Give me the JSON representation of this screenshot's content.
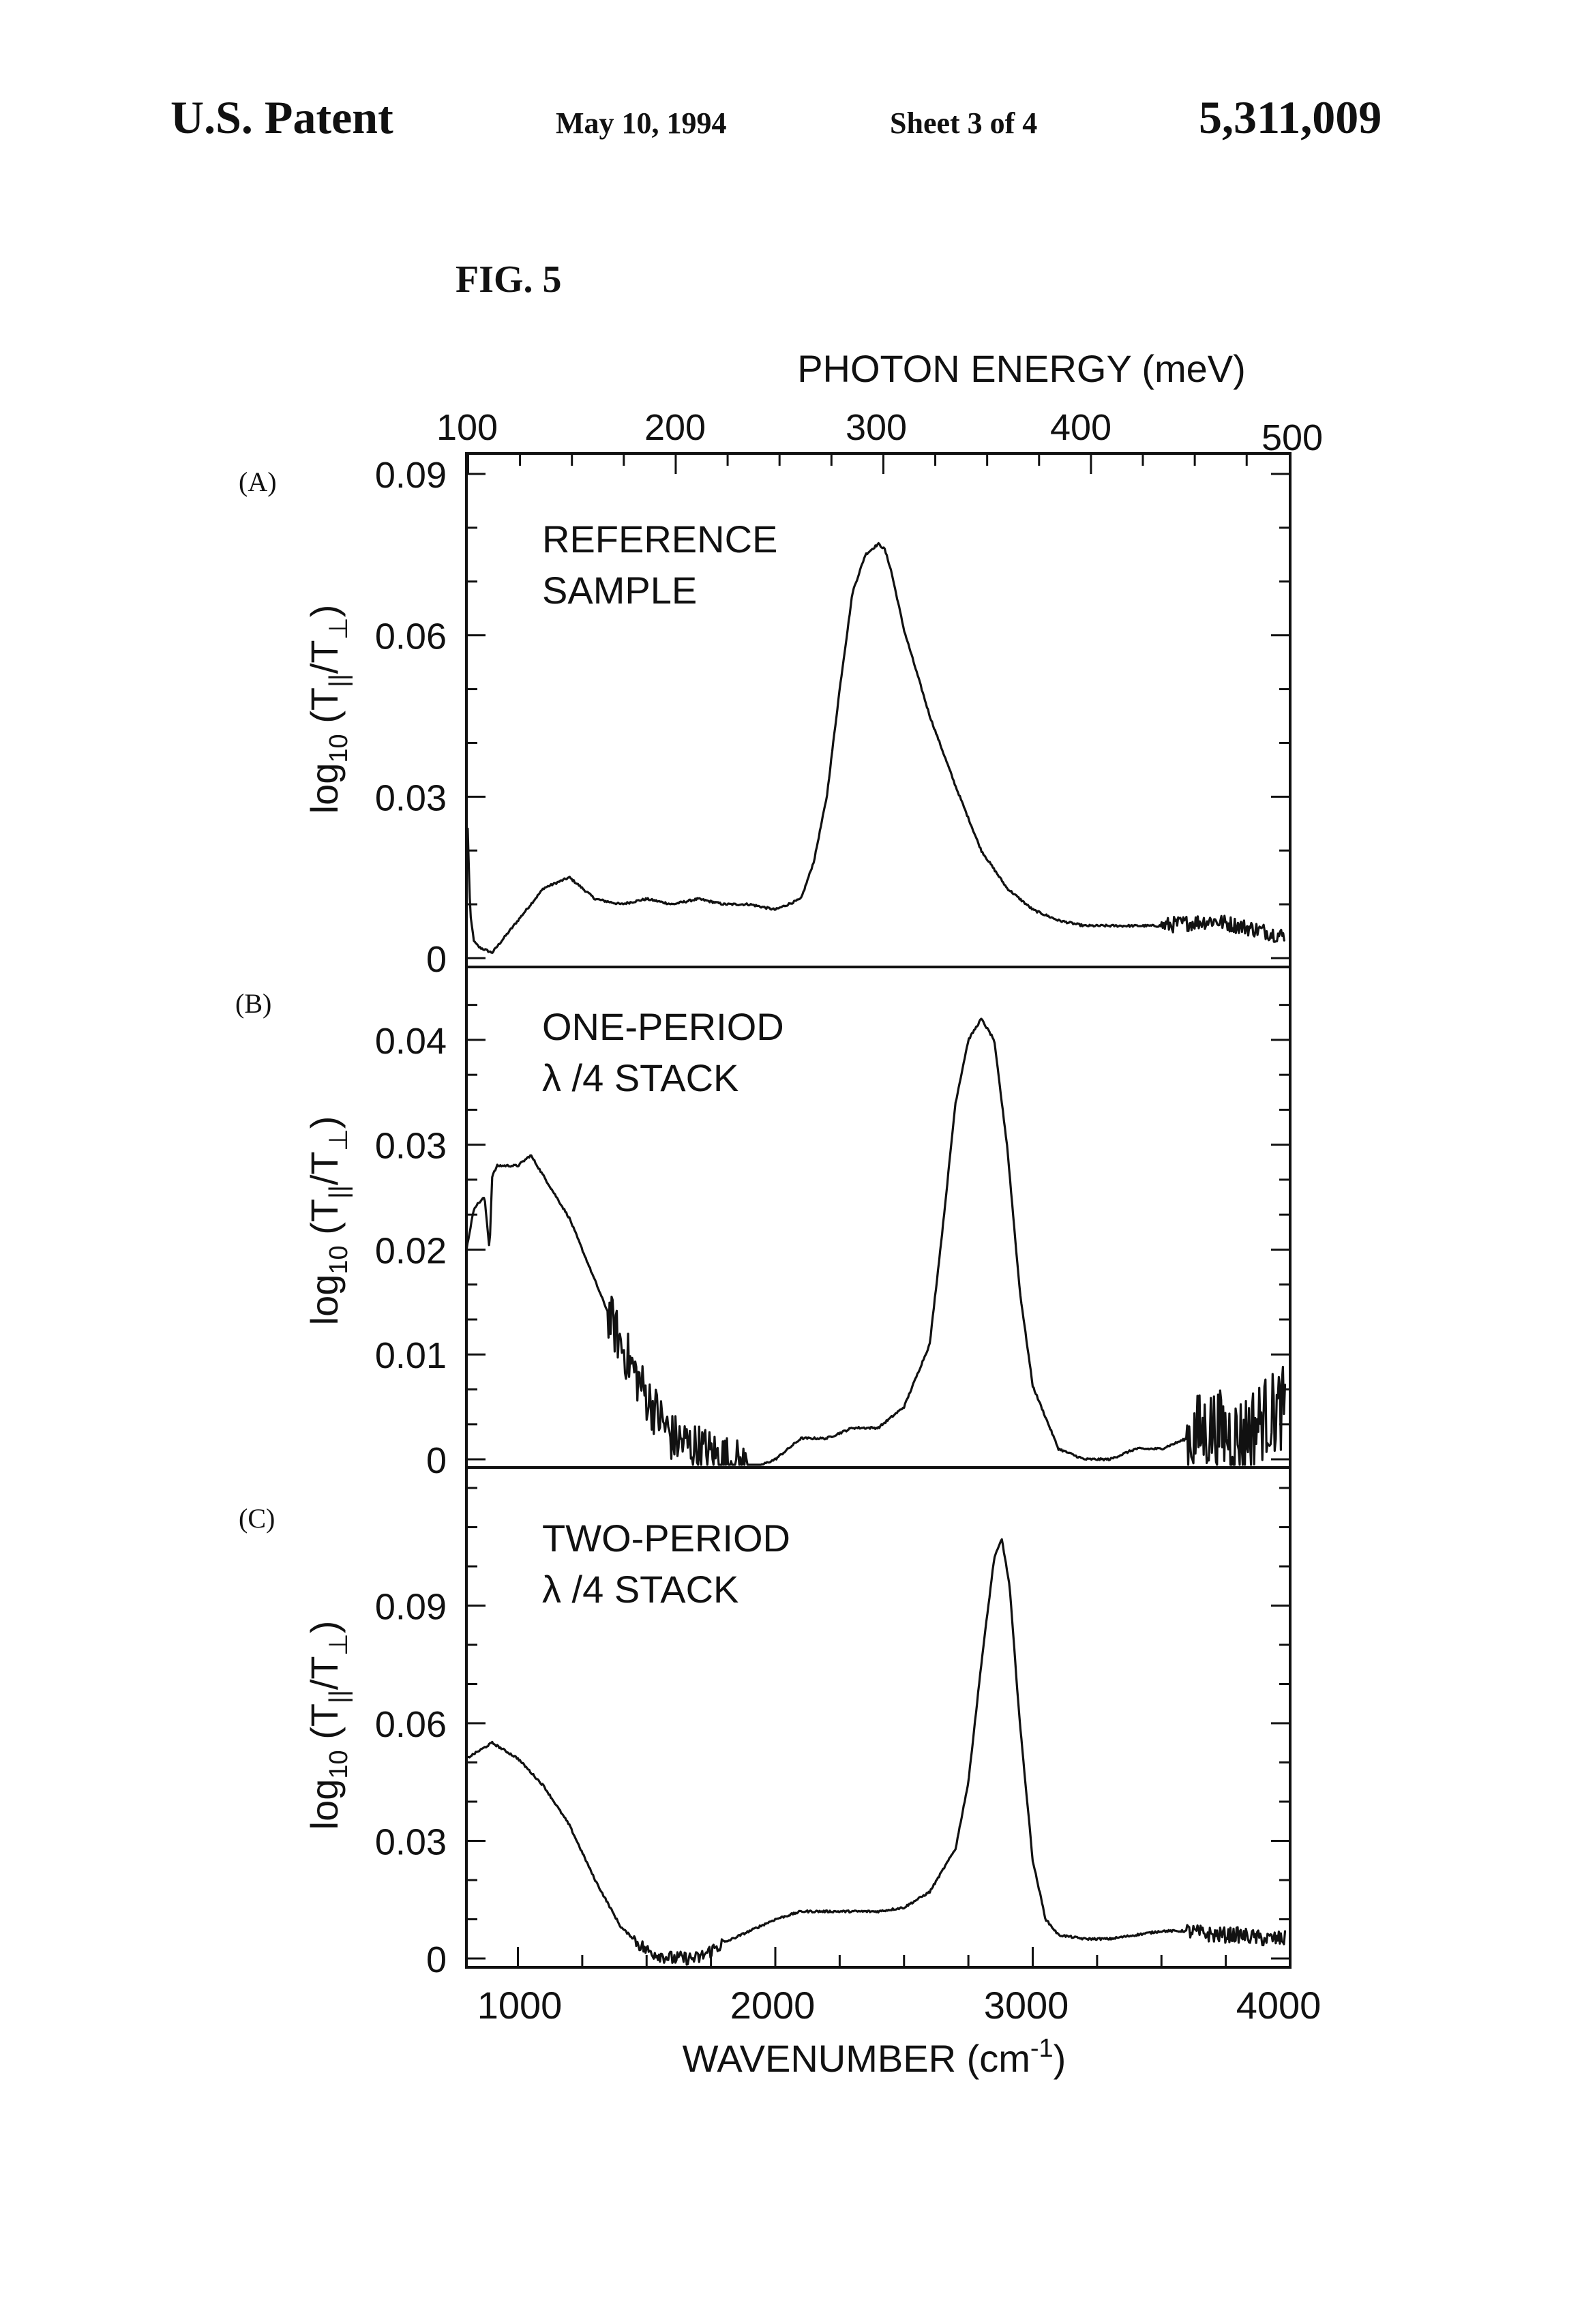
{
  "header": {
    "patent": "U.S. Patent",
    "date": "May 10, 1994",
    "sheet": "Sheet 3 of 4",
    "number": "5,311,009"
  },
  "figure": {
    "title": "FIG. 5",
    "top_axis_title": "PHOTON ENERGY (meV)",
    "top_axis_ticks": [
      "100",
      "200",
      "300",
      "400",
      "500"
    ],
    "bottom_axis_ticks": [
      "1000",
      "2000",
      "3000",
      "4000"
    ],
    "x_label": "WAVENUMBER (cm",
    "x_label_sup": "-1",
    "x_label_close": ")",
    "y_label": "log",
    "y_label_sub": "10",
    "y_label_rest": " (T",
    "y_label_sub2": "||",
    "y_label_mid": "/T",
    "y_label_sub3": "⊥",
    "y_label_close": ")"
  },
  "chart_data": [
    {
      "type": "line",
      "panel": "(A)",
      "annotation": [
        "REFERENCE",
        "SAMPLE"
      ],
      "xlabel": "WAVENUMBER (cm-1)",
      "ylabel": "log10 (T||/T⊥)",
      "xlim": [
        800,
        4000
      ],
      "ylim": [
        0,
        0.09
      ],
      "y_ticks": [
        "0",
        "0.03",
        "0.06",
        "0.09"
      ],
      "y_tick_values": [
        0,
        0.03,
        0.06,
        0.09
      ],
      "x": [
        805,
        815,
        830,
        850,
        900,
        1000,
        1100,
        1200,
        1300,
        1400,
        1500,
        1600,
        1700,
        1800,
        1900,
        2000,
        2100,
        2150,
        2200,
        2250,
        2300,
        2350,
        2400,
        2425,
        2450,
        2500,
        2600,
        2700,
        2800,
        2900,
        3000,
        3100,
        3200,
        3300,
        3500,
        3700,
        3800,
        3900,
        3980
      ],
      "y": [
        0.024,
        0.008,
        0.003,
        0.002,
        0.001,
        0.007,
        0.013,
        0.015,
        0.011,
        0.01,
        0.011,
        0.01,
        0.011,
        0.01,
        0.01,
        0.009,
        0.011,
        0.018,
        0.03,
        0.05,
        0.068,
        0.075,
        0.077,
        0.076,
        0.072,
        0.061,
        0.045,
        0.032,
        0.02,
        0.013,
        0.009,
        0.007,
        0.006,
        0.006,
        0.006,
        0.007,
        0.006,
        0.005,
        0.004
      ],
      "noise_after": 3500,
      "noise_amp": 0.0015
    },
    {
      "type": "line",
      "panel": "(B)",
      "annotation": [
        "ONE-PERIOD",
        "λ /4 STACK"
      ],
      "xlabel": "WAVENUMBER (cm-1)",
      "ylabel": "log10 (T||/T⊥)",
      "xlim": [
        800,
        4000
      ],
      "ylim": [
        0,
        0.045
      ],
      "y_ticks": [
        "0",
        "0.01",
        "0.02",
        "0.03",
        "0.04"
      ],
      "y_tick_values": [
        0,
        0.01,
        0.02,
        0.03,
        0.04
      ],
      "x": [
        800,
        830,
        870,
        890,
        900,
        920,
        1000,
        1050,
        1100,
        1200,
        1300,
        1400,
        1500,
        1600,
        1700,
        1800,
        1900,
        2000,
        2100,
        2200,
        2300,
        2400,
        2500,
        2600,
        2650,
        2700,
        2750,
        2800,
        2850,
        2900,
        2950,
        3000,
        3100,
        3200,
        3300,
        3400,
        3500,
        3600,
        3700,
        3800,
        3900,
        3980
      ],
      "y": [
        0.02,
        0.024,
        0.025,
        0.02,
        0.027,
        0.028,
        0.028,
        0.029,
        0.027,
        0.023,
        0.017,
        0.011,
        0.006,
        0.002,
        0.001,
        0.0,
        -0.001,
        0.0,
        0.002,
        0.002,
        0.003,
        0.003,
        0.005,
        0.011,
        0.022,
        0.034,
        0.04,
        0.042,
        0.04,
        0.03,
        0.016,
        0.007,
        0.001,
        0.0,
        0.0,
        0.001,
        0.001,
        0.002,
        0.003,
        0.002,
        0.004,
        0.005
      ],
      "noise_after": 3600,
      "noise_amp": 0.004,
      "noise_band": [
        1350,
        1900
      ],
      "noise_band_amp": 0.0025
    },
    {
      "type": "line",
      "panel": "(C)",
      "annotation": [
        "TWO-PERIOD",
        "λ /4 STACK"
      ],
      "xlabel": "WAVENUMBER (cm-1)",
      "ylabel": "log10 (T||/T⊥)",
      "xlim": [
        800,
        4000
      ],
      "ylim": [
        0,
        0.12
      ],
      "y_ticks": [
        "0",
        "0.03",
        "0.06",
        "0.09"
      ],
      "y_tick_values": [
        0,
        0.03,
        0.06,
        0.09
      ],
      "x": [
        800,
        850,
        900,
        950,
        1000,
        1100,
        1200,
        1300,
        1400,
        1500,
        1600,
        1700,
        1800,
        1900,
        2000,
        2100,
        2200,
        2300,
        2400,
        2500,
        2600,
        2700,
        2750,
        2800,
        2850,
        2880,
        2910,
        2950,
        3000,
        3050,
        3100,
        3200,
        3300,
        3400,
        3500,
        3600,
        3700,
        3800,
        3900,
        3980
      ],
      "y": [
        0.051,
        0.053,
        0.055,
        0.053,
        0.051,
        0.044,
        0.034,
        0.02,
        0.008,
        0.002,
        0.0,
        0.0,
        0.004,
        0.007,
        0.01,
        0.012,
        0.012,
        0.012,
        0.012,
        0.013,
        0.017,
        0.028,
        0.045,
        0.075,
        0.102,
        0.107,
        0.095,
        0.06,
        0.025,
        0.01,
        0.006,
        0.005,
        0.005,
        0.006,
        0.007,
        0.007,
        0.006,
        0.006,
        0.005,
        0.005
      ],
      "noise_after": 3600,
      "noise_amp": 0.002,
      "noise_band": [
        1450,
        1800
      ],
      "noise_band_amp": 0.0018
    }
  ]
}
